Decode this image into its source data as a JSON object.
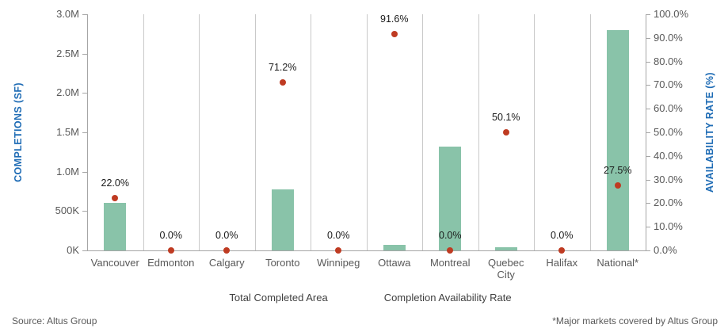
{
  "chart_data": {
    "type": "combo-bar-scatter",
    "categories": [
      "Vancouver",
      "Edmonton",
      "Calgary",
      "Toronto",
      "Winnipeg",
      "Ottawa",
      "Montreal",
      "Quebec City",
      "Halifax",
      "National*"
    ],
    "series": [
      {
        "name": "Total Completed Area",
        "type": "bar",
        "axis": "left",
        "color": "#89C3A9",
        "values_sf": [
          600000,
          0,
          0,
          780000,
          0,
          70000,
          1320000,
          40000,
          0,
          2800000
        ]
      },
      {
        "name": "Completion Availability Rate",
        "type": "scatter",
        "axis": "right",
        "color": "#BF3B22",
        "values_pct": [
          22.0,
          0.0,
          0.0,
          71.2,
          0.0,
          91.6,
          0.0,
          50.1,
          0.0,
          27.5
        ],
        "point_labels": [
          "22.0%",
          "0.0%",
          "0.0%",
          "71.2%",
          "0.0%",
          "91.6%",
          "0.0%",
          "50.1%",
          "0.0%",
          "27.5%"
        ]
      }
    ],
    "left_axis": {
      "title": "COMPLETIONS (SF)",
      "max_sf": 3000000,
      "tick_labels": [
        "3.0M",
        "2.5M",
        "2.0M",
        "1.5M",
        "1.0M",
        "500K",
        "0K"
      ]
    },
    "right_axis": {
      "title": "AVAILABILITY RATE (%)",
      "max_pct": 100,
      "tick_labels": [
        "100.0%",
        "90.0%",
        "80.0%",
        "70.0%",
        "60.0%",
        "50.0%",
        "40.0%",
        "30.0%",
        "20.0%",
        "10.0%",
        "0.0%"
      ]
    },
    "grid": "vertical-category-separators",
    "legend_position": "bottom-center",
    "title": "",
    "xlabel": "",
    "ylabel_left": "COMPLETIONS (SF)",
    "ylabel_right": "AVAILABILITY RATE (%)"
  },
  "legend": {
    "items": [
      {
        "label": "Total Completed Area",
        "marker": "square",
        "color": "#89C3A9"
      },
      {
        "label": "Completion Availability Rate",
        "marker": "dot",
        "color": "#BF3B22"
      }
    ]
  },
  "footer": {
    "source": "Source: Altus Group",
    "footnote": "*Major markets covered by Altus Group"
  },
  "colors": {
    "bar": "#89C3A9",
    "dot": "#BF3B22",
    "axis_title": "#1F6CB5",
    "tick_text": "#595959",
    "grid": "#C9C9C9",
    "axis_line": "#A6A6A6"
  }
}
